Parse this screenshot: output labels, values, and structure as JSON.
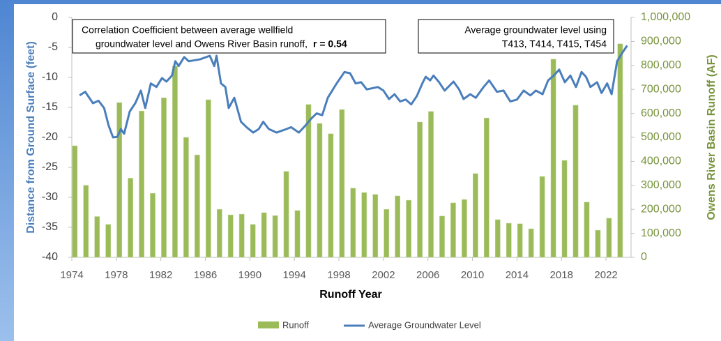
{
  "chart_data": {
    "type": "combo",
    "xlabel": "Runoff Year",
    "ylabel": "Distance from Ground Surface (feet)",
    "y2label": "Owens River Basin Runoff (AF)",
    "xlim": [
      1974,
      2024
    ],
    "xticks": [
      1974,
      1978,
      1982,
      1986,
      1990,
      1994,
      1998,
      2002,
      2006,
      2010,
      2014,
      2018,
      2022
    ],
    "ylim": [
      -40,
      0
    ],
    "yticks": [
      0,
      -5,
      -10,
      -15,
      -20,
      -25,
      -30,
      -35,
      -40
    ],
    "y2lim": [
      0,
      1000000
    ],
    "y2ticks": [
      {
        "value": 1000000,
        "label": "1,000,000"
      },
      {
        "value": 900000,
        "label": "900,000"
      },
      {
        "value": 800000,
        "label": "800,000"
      },
      {
        "value": 700000,
        "label": "700,000"
      },
      {
        "value": 600000,
        "label": "600,000"
      },
      {
        "value": 500000,
        "label": "500,000"
      },
      {
        "value": 400000,
        "label": "400,000"
      },
      {
        "value": 300000,
        "label": "300,000"
      },
      {
        "value": 200000,
        "label": "200,000"
      },
      {
        "value": 100000,
        "label": "100,000"
      },
      0
    ],
    "annotations": [
      {
        "lines": [
          "Correlation Coefficient between average wellfield",
          "groundwater level and Owens River Basin runoff,"
        ],
        "emphasis": "r = 0.54"
      },
      {
        "lines": [
          "Average groundwater level using",
          "T413, T414, T415, T454"
        ]
      }
    ],
    "series": [
      {
        "name": "Runoff",
        "type": "bar",
        "axis": "y2",
        "color": "#9bbb59",
        "x": [
          1974,
          1975,
          1976,
          1977,
          1978,
          1979,
          1980,
          1981,
          1982,
          1983,
          1984,
          1985,
          1986,
          1987,
          1988,
          1989,
          1990,
          1991,
          1992,
          1993,
          1994,
          1995,
          1996,
          1997,
          1998,
          1999,
          2000,
          2001,
          2002,
          2003,
          2004,
          2005,
          2006,
          2007,
          2008,
          2009,
          2010,
          2011,
          2012,
          2013,
          2014,
          2015,
          2016,
          2017,
          2018,
          2019,
          2020,
          2021,
          2022,
          2023
        ],
        "values": [
          465000,
          300000,
          170000,
          137000,
          645000,
          330000,
          610000,
          267000,
          665000,
          797000,
          500000,
          427000,
          657000,
          200000,
          177000,
          180000,
          137000,
          186000,
          174000,
          358000,
          195000,
          637000,
          558000,
          515000,
          616000,
          288000,
          270000,
          262000,
          200000,
          256000,
          238000,
          564000,
          608000,
          172000,
          227000,
          241000,
          349000,
          581000,
          157000,
          142000,
          140000,
          119000,
          337000,
          826000,
          404000,
          634000,
          230000,
          113000,
          163000,
          890000
        ]
      },
      {
        "name": "Average Groundwater Level",
        "type": "line",
        "axis": "y",
        "color": "#4a7ebb",
        "x": [
          1974.7,
          1975.2,
          1975.9,
          1976.4,
          1976.9,
          1977.3,
          1977.7,
          1978.1,
          1978.4,
          1978.7,
          1979.2,
          1979.7,
          1980.2,
          1980.6,
          1981.1,
          1981.6,
          1982.1,
          1982.5,
          1983.0,
          1983.3,
          1983.6,
          1984.1,
          1984.5,
          1985.5,
          1986.4,
          1986.8,
          1987.0,
          1987.4,
          1987.8,
          1988.1,
          1988.6,
          1989.2,
          1989.7,
          1990.3,
          1990.8,
          1991.2,
          1991.7,
          1992.4,
          1993.3,
          1993.7,
          1994.4,
          1995.0,
          1995.5,
          1996.0,
          1996.5,
          1997.0,
          1997.8,
          1998.5,
          1999.0,
          1999.5,
          2000.0,
          2000.5,
          2001.5,
          2002.0,
          2002.5,
          2003.0,
          2003.5,
          2004.0,
          2004.5,
          2005.0,
          2005.5,
          2005.8,
          2006.2,
          2006.5,
          2007.0,
          2007.5,
          2008.3,
          2008.8,
          2009.2,
          2009.8,
          2010.3,
          2011.0,
          2011.5,
          2012.2,
          2012.8,
          2013.4,
          2014.0,
          2014.6,
          2015.2,
          2015.7,
          2016.3,
          2016.8,
          2017.3,
          2017.8,
          2018.3,
          2018.8,
          2019.3,
          2019.8,
          2020.2,
          2020.6,
          2021.2,
          2021.6,
          2022.1,
          2022.5,
          2023.0,
          2023.5,
          2023.9
        ],
        "values": [
          -13,
          -12.4,
          -14.3,
          -13.9,
          -15.1,
          -18,
          -20,
          -19.9,
          -18.6,
          -19.4,
          -15.7,
          -14.3,
          -12.2,
          -15.1,
          -11,
          -11.6,
          -10.1,
          -10.7,
          -9.7,
          -7.3,
          -8.1,
          -6.6,
          -7.3,
          -7,
          -6.4,
          -8.1,
          -6.4,
          -11,
          -11.6,
          -15.1,
          -13.4,
          -17.4,
          -18.3,
          -19.2,
          -18.6,
          -17.4,
          -18.6,
          -19.2,
          -18.6,
          -18.3,
          -19.2,
          -18,
          -16.9,
          -16,
          -16.3,
          -13.4,
          -11,
          -9.1,
          -9.3,
          -11,
          -10.8,
          -12,
          -11.6,
          -12.2,
          -13.6,
          -12.8,
          -14,
          -13.7,
          -14.5,
          -13.1,
          -11,
          -9.9,
          -10.5,
          -9.7,
          -10.8,
          -12.2,
          -10.7,
          -12,
          -13.6,
          -12.8,
          -13.4,
          -11.6,
          -10.5,
          -12.4,
          -12.2,
          -14,
          -13.7,
          -12.2,
          -13,
          -12.2,
          -12.8,
          -10.5,
          -9.7,
          -8.7,
          -10.8,
          -9.7,
          -11.6,
          -9.1,
          -9.9,
          -11.6,
          -10.8,
          -12.6,
          -11,
          -12.8,
          -7.3,
          -5.8,
          -4.7
        ]
      }
    ]
  }
}
